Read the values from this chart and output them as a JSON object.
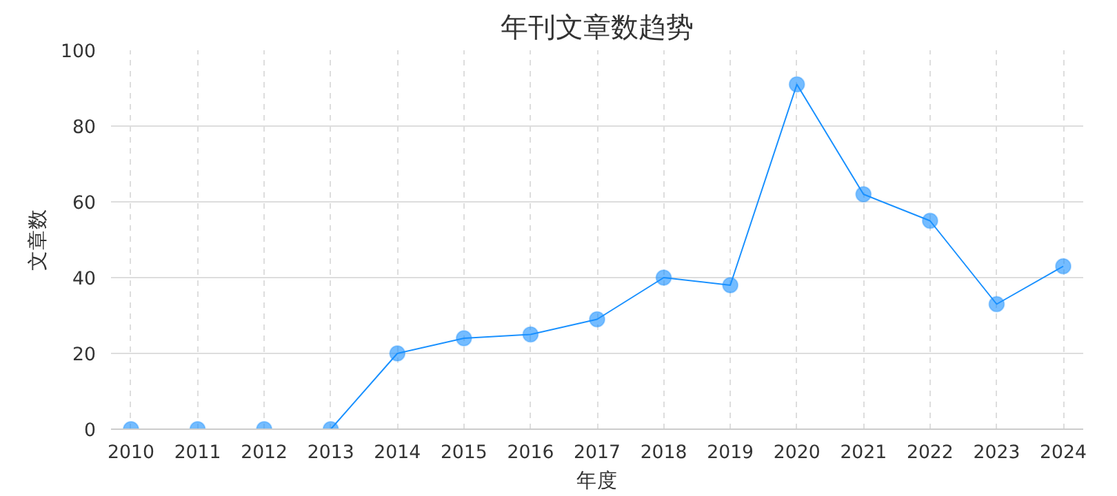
{
  "chart_data": {
    "type": "line",
    "title": "年刊文章数趋势",
    "xlabel": "年度",
    "ylabel": "文章数",
    "categories": [
      "2010",
      "2011",
      "2012",
      "2013",
      "2014",
      "2015",
      "2016",
      "2017",
      "2018",
      "2019",
      "2020",
      "2021",
      "2022",
      "2023",
      "2024"
    ],
    "series": [
      {
        "color": "#1890ff",
        "values": [
          0,
          0,
          0,
          0,
          20,
          24,
          25,
          29,
          40,
          38,
          91,
          62,
          55,
          33,
          43
        ]
      }
    ],
    "ylim": [
      0,
      100
    ],
    "yticks": [
      0,
      20,
      40,
      60,
      80,
      100
    ],
    "grid": true,
    "marker": "circle",
    "line_style": "solid"
  }
}
